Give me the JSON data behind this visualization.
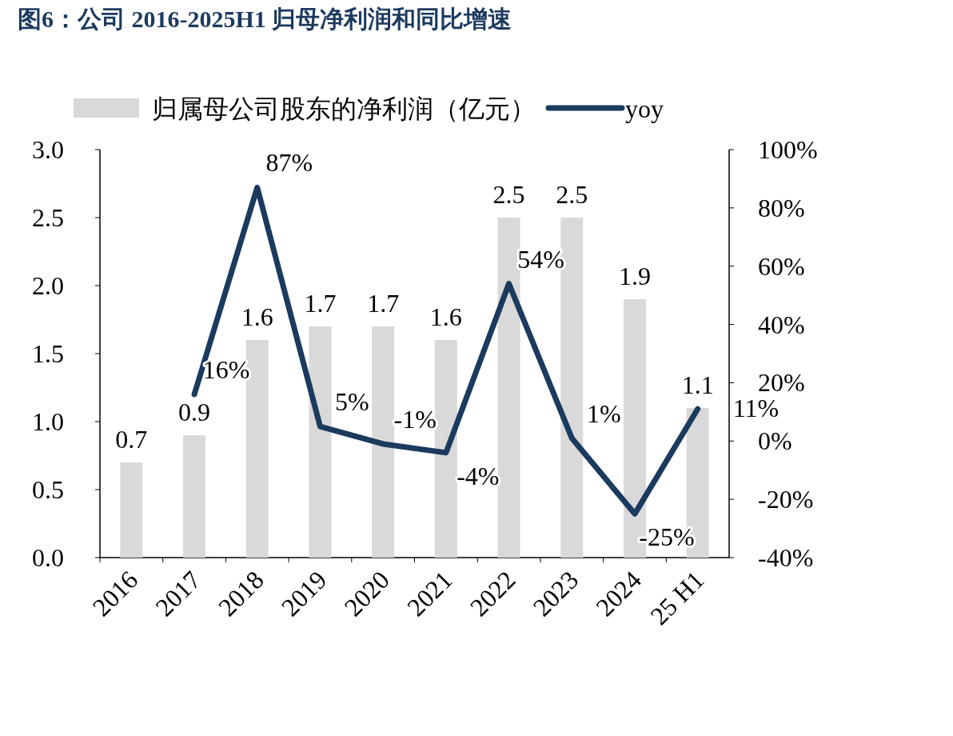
{
  "chart_data": {
    "type": "bar",
    "title": "图6：公司 2016-2025H1 归母净利润和同比增速",
    "categories": [
      "2016",
      "2017",
      "2018",
      "2019",
      "2020",
      "2021",
      "2022",
      "2023",
      "2024",
      "25 H1"
    ],
    "series": [
      {
        "name": "归属母公司股东的净利润（亿元）",
        "color": "#d9d9d9",
        "values": [
          0.7,
          0.9,
          1.6,
          1.7,
          1.7,
          1.6,
          2.5,
          2.5,
          1.9,
          1.1
        ],
        "value_labels": [
          "0.7",
          "0.9",
          "1.6",
          "1.7",
          "1.7",
          "1.6",
          "2.5",
          "2.5",
          "1.9",
          "1.1"
        ]
      },
      {
        "name": "yoy",
        "type": "line",
        "axis": "y2",
        "color": "#1b3a5e",
        "values": [
          null,
          16,
          87,
          5,
          -1,
          -4,
          54,
          1,
          -25,
          11
        ],
        "value_labels": [
          null,
          "16%",
          "87%",
          "5%",
          "-1%",
          "-4%",
          "54%",
          "1%",
          "-25%",
          "11%"
        ]
      }
    ],
    "ylim": [
      0,
      3
    ],
    "yticks": [
      {
        "value": 0,
        "label": "0.0"
      },
      {
        "value": 0.5,
        "label": "0.5"
      },
      {
        "value": 1,
        "label": "1.0"
      },
      {
        "value": 1.5,
        "label": "1.5"
      },
      {
        "value": 2,
        "label": "2.0"
      },
      {
        "value": 2.5,
        "label": "2.5"
      },
      {
        "value": 3,
        "label": "3.0"
      }
    ],
    "y2lim": [
      -40,
      100
    ],
    "y2ticks": [
      {
        "value": -40,
        "label": "-40%"
      },
      {
        "value": -20,
        "label": "-20%"
      },
      {
        "value": 0,
        "label": "0%"
      },
      {
        "value": 20,
        "label": "20%"
      },
      {
        "value": 40,
        "label": "40%"
      },
      {
        "value": 60,
        "label": "60%"
      },
      {
        "value": 80,
        "label": "80%"
      },
      {
        "value": 100,
        "label": "100%"
      }
    ],
    "grid": false,
    "legend": "top"
  }
}
